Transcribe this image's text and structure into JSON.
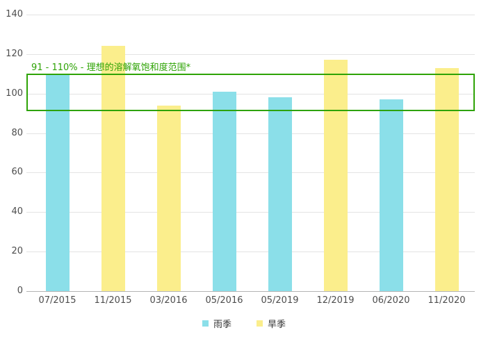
{
  "chart_data": {
    "type": "bar",
    "title": "",
    "categories": [
      "07/2015",
      "11/2015",
      "03/2016",
      "05/2016",
      "05/2019",
      "12/2019",
      "06/2020",
      "11/2020"
    ],
    "points": [
      {
        "category": "07/2015",
        "series": "雨季",
        "value": 110
      },
      {
        "category": "11/2015",
        "series": "旱季",
        "value": 124
      },
      {
        "category": "03/2016",
        "series": "旱季",
        "value": 94
      },
      {
        "category": "05/2016",
        "series": "雨季",
        "value": 101
      },
      {
        "category": "05/2019",
        "series": "雨季",
        "value": 98
      },
      {
        "category": "12/2019",
        "series": "旱季",
        "value": 117
      },
      {
        "category": "06/2020",
        "series": "雨季",
        "value": 97
      },
      {
        "category": "11/2020",
        "series": "旱季",
        "value": 113
      }
    ],
    "series": [
      {
        "name": "雨季",
        "key": "rainy-season",
        "color": "#8BDFE9",
        "values": [
          110,
          null,
          null,
          101,
          98,
          null,
          97,
          null
        ]
      },
      {
        "name": "旱季",
        "key": "dry-season",
        "color": "#FBEE8C",
        "values": [
          null,
          124,
          94,
          null,
          null,
          117,
          null,
          113
        ]
      }
    ],
    "legend": [
      {
        "label": "雨季",
        "key": "rainy-season",
        "color": "#8BDFE9"
      },
      {
        "label": "旱季",
        "key": "dry-season",
        "color": "#FBEE8C"
      }
    ],
    "legend_position": "bottom-center",
    "xlabel": "",
    "ylabel": "",
    "ylim": [
      0,
      140
    ],
    "yticks": [
      0,
      20,
      40,
      60,
      80,
      100,
      120,
      140
    ],
    "grid": "horizontal",
    "annotation": {
      "label": "91 - 110% - 理想的溶解氧饱和度范围*",
      "from": 91,
      "to": 110,
      "color": "#2EA305"
    }
  },
  "colors": {
    "gridline": "#E3E3E3",
    "axis_line": "#B3B3B3",
    "tick_text": "#4D4D4D",
    "legend_text": "#333333",
    "background": "#FFFFFF"
  }
}
